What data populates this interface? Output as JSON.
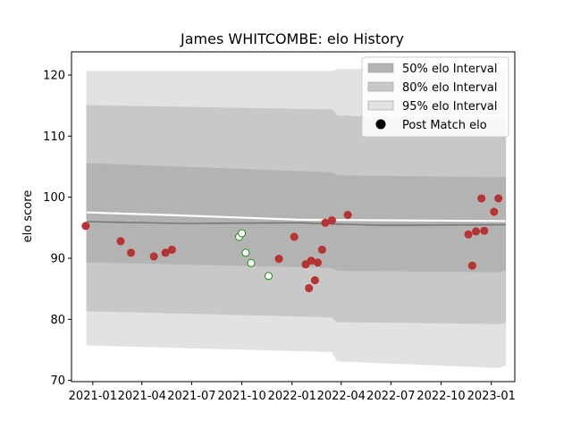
{
  "chart_data": {
    "type": "scatter",
    "title": "James WHITCOMBE: elo History",
    "xlabel": "",
    "ylabel": "elo score",
    "xlim": [
      "2020-11-23",
      "2023-02-13"
    ],
    "ylim": [
      69.8,
      123.8
    ],
    "y_ticks": [
      70,
      80,
      90,
      100,
      110,
      120
    ],
    "x_ticks": [
      {
        "date": "2021-01-01",
        "label": "2021-01"
      },
      {
        "date": "2021-04-01",
        "label": "2021-04"
      },
      {
        "date": "2021-07-01",
        "label": "2021-07"
      },
      {
        "date": "2021-10-01",
        "label": "2021-10"
      },
      {
        "date": "2022-01-01",
        "label": "2022-01"
      },
      {
        "date": "2022-04-01",
        "label": "2022-04"
      },
      {
        "date": "2022-07-01",
        "label": "2022-07"
      },
      {
        "date": "2022-10-01",
        "label": "2022-10"
      },
      {
        "date": "2023-01-01",
        "label": "2023-01"
      }
    ],
    "legend": {
      "position": "top-right",
      "entries": [
        {
          "label": "50% elo Interval",
          "color": "#b3b3b3"
        },
        {
          "label": "80% elo Interval",
          "color": "#c8c8c8"
        },
        {
          "label": "95% elo Interval",
          "color": "#e2e2e2"
        },
        {
          "label": "Post Match elo",
          "color": "#000000"
        }
      ]
    },
    "bands": [
      {
        "level": "95%",
        "color": "#e2e2e2",
        "dates": [
          "2020-12-21",
          "2022-03-15",
          "2022-03-25",
          "2023-01-15",
          "2023-01-27"
        ],
        "upper": [
          120.6,
          120.6,
          120.9,
          120.9,
          120.9
        ],
        "lower": [
          75.8,
          74.7,
          73.2,
          72.1,
          72.5
        ]
      },
      {
        "level": "80%",
        "color": "#c8c8c8",
        "dates": [
          "2020-12-21",
          "2022-03-15",
          "2022-03-25",
          "2023-01-15",
          "2023-01-27"
        ],
        "upper": [
          115.0,
          114.3,
          113.3,
          112.7,
          112.7
        ],
        "lower": [
          81.4,
          80.4,
          79.6,
          79.3,
          79.5
        ]
      },
      {
        "level": "50%",
        "color": "#b3b3b3",
        "dates": [
          "2020-12-21",
          "2022-03-15",
          "2022-03-25",
          "2023-01-15",
          "2023-01-27"
        ],
        "upper": [
          105.5,
          104.0,
          103.5,
          103.2,
          103.2
        ],
        "lower": [
          89.4,
          88.5,
          88.0,
          87.8,
          88.1
        ]
      }
    ],
    "lines": [
      {
        "name": "",
        "color": "#ffffff",
        "dates": [
          "2020-12-21",
          "2021-06-15",
          "2022-01-15",
          "2023-01-27"
        ],
        "values": [
          97.5,
          97.0,
          96.3,
          96.1
        ]
      },
      {
        "name": "",
        "color": "#777777",
        "dates": [
          "2020-12-21",
          "2021-06-15",
          "2022-01-15",
          "2022-03-20",
          "2022-06-15",
          "2023-01-27"
        ],
        "values": [
          96.0,
          95.7,
          95.8,
          95.6,
          95.4,
          95.5
        ]
      }
    ],
    "points": [
      {
        "date": "2020-12-19",
        "value": 95.3,
        "outcome": "red"
      },
      {
        "date": "2021-02-21",
        "value": 92.8,
        "outcome": "red"
      },
      {
        "date": "2021-03-12",
        "value": 90.9,
        "outcome": "red"
      },
      {
        "date": "2021-04-23",
        "value": 90.3,
        "outcome": "red"
      },
      {
        "date": "2021-05-14",
        "value": 90.9,
        "outcome": "red"
      },
      {
        "date": "2021-05-26",
        "value": 91.4,
        "outcome": "red"
      },
      {
        "date": "2021-09-26",
        "value": 93.5,
        "outcome": "green"
      },
      {
        "date": "2021-10-01",
        "value": 94.1,
        "outcome": "green"
      },
      {
        "date": "2021-10-08",
        "value": 90.9,
        "outcome": "green"
      },
      {
        "date": "2021-10-18",
        "value": 89.2,
        "outcome": "green"
      },
      {
        "date": "2021-11-19",
        "value": 87.1,
        "outcome": "green"
      },
      {
        "date": "2021-12-08",
        "value": 89.9,
        "outcome": "red"
      },
      {
        "date": "2022-01-05",
        "value": 93.5,
        "outcome": "red"
      },
      {
        "date": "2022-01-26",
        "value": 89.0,
        "outcome": "red"
      },
      {
        "date": "2022-02-01",
        "value": 85.1,
        "outcome": "red"
      },
      {
        "date": "2022-02-05",
        "value": 89.6,
        "outcome": "red"
      },
      {
        "date": "2022-02-12",
        "value": 86.4,
        "outcome": "red"
      },
      {
        "date": "2022-02-17",
        "value": 89.3,
        "outcome": "red"
      },
      {
        "date": "2022-02-25",
        "value": 91.4,
        "outcome": "red"
      },
      {
        "date": "2022-03-03",
        "value": 95.8,
        "outcome": "red"
      },
      {
        "date": "2022-03-15",
        "value": 96.2,
        "outcome": "red"
      },
      {
        "date": "2022-04-13",
        "value": 97.1,
        "outcome": "red"
      },
      {
        "date": "2022-11-20",
        "value": 93.9,
        "outcome": "red"
      },
      {
        "date": "2022-11-27",
        "value": 88.8,
        "outcome": "red"
      },
      {
        "date": "2022-12-04",
        "value": 94.4,
        "outcome": "red"
      },
      {
        "date": "2022-12-14",
        "value": 99.8,
        "outcome": "red"
      },
      {
        "date": "2022-12-19",
        "value": 94.5,
        "outcome": "red"
      },
      {
        "date": "2023-01-06",
        "value": 97.6,
        "outcome": "red"
      },
      {
        "date": "2023-01-14",
        "value": 99.8,
        "outcome": "red"
      }
    ],
    "marker_colors": {
      "fill": "#a83a3a",
      "red": "#cc2222",
      "green": "#1c8a1c",
      "green_fill": "#ffffff"
    },
    "grid": false
  }
}
